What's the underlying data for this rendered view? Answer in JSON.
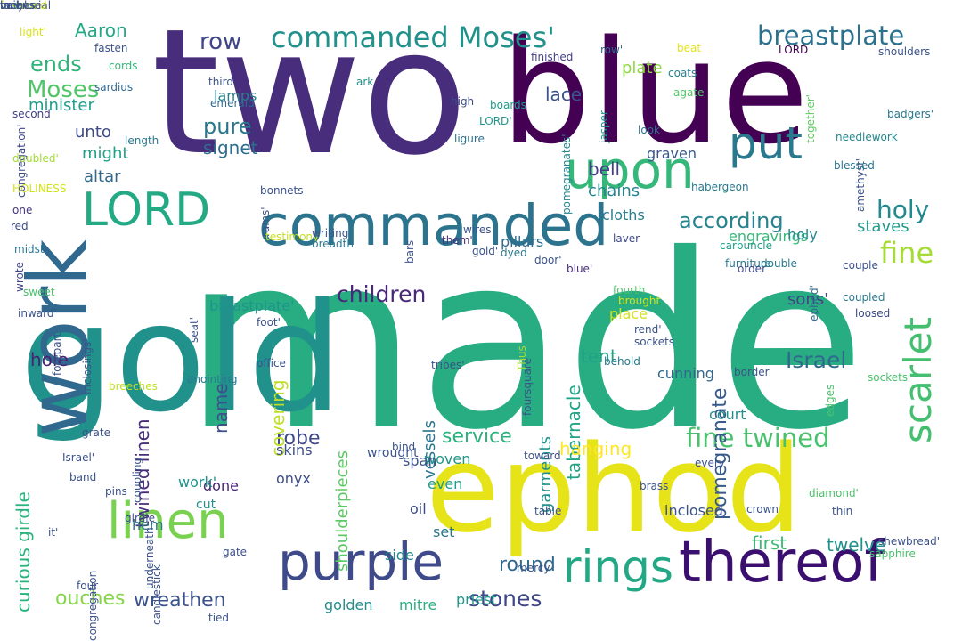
{
  "words": [
    {
      "text": "made",
      "color": "#27ad81",
      "rotate": 0
    },
    {
      "text": "two",
      "color": "#472d7b",
      "rotate": 0
    },
    {
      "text": "blue",
      "color": "#440154",
      "rotate": 0
    },
    {
      "text": "gold",
      "color": "#21918c",
      "rotate": 0
    },
    {
      "text": "ephod",
      "color": "#e6e419",
      "rotate": 0
    },
    {
      "text": "work",
      "color": "#31688e",
      "rotate": -90
    },
    {
      "text": "commanded",
      "color": "#2c738e",
      "rotate": 0
    },
    {
      "text": "LORD",
      "color": "#23a983",
      "rotate": 0
    },
    {
      "text": "upon",
      "color": "#35b779",
      "rotate": 0
    },
    {
      "text": "put",
      "color": "#2a788e",
      "rotate": 0
    },
    {
      "text": "thereof",
      "color": "#3b0f70",
      "rotate": 0
    },
    {
      "text": "purple",
      "color": "#3e4a89",
      "rotate": 0
    },
    {
      "text": "linen",
      "color": "#7ad151",
      "rotate": 0
    },
    {
      "text": "rings",
      "color": "#22a884",
      "rotate": 0
    },
    {
      "text": "scarlet",
      "color": "#44bf70",
      "rotate": -90
    },
    {
      "text": "commanded Moses'",
      "color": "#21918c",
      "rotate": 0
    },
    {
      "text": "breastplate",
      "color": "#2c728e",
      "rotate": 0
    },
    {
      "text": "children",
      "color": "#482878",
      "rotate": 0
    },
    {
      "text": "Israel",
      "color": "#31688e",
      "rotate": 0
    },
    {
      "text": "fine twined",
      "color": "#4ac16d",
      "rotate": 0
    },
    {
      "text": "according",
      "color": "#26828e",
      "rotate": 0
    },
    {
      "text": "pomegranate",
      "color": "#375a8c",
      "rotate": -90
    },
    {
      "text": "tabernacle",
      "color": "#20a386",
      "rotate": -90
    },
    {
      "text": "twined linen",
      "color": "#472d7b",
      "rotate": -90
    },
    {
      "text": "stones",
      "color": "#3f4788",
      "rotate": 0
    },
    {
      "text": "robe",
      "color": "#3e4989",
      "rotate": 0
    },
    {
      "text": "service",
      "color": "#2db27d",
      "rotate": 0
    },
    {
      "text": "curious girdle",
      "color": "#2db27d",
      "rotate": -90
    },
    {
      "text": "Moses",
      "color": "#52c569",
      "rotate": 0
    },
    {
      "text": "ouches",
      "color": "#86d549",
      "rotate": 0
    },
    {
      "text": "wreathen",
      "color": "#3b528b",
      "rotate": 0
    },
    {
      "text": "round",
      "color": "#31688e",
      "rotate": 0
    },
    {
      "text": "fine",
      "color": "#a5db36",
      "rotate": 0
    },
    {
      "text": "holy",
      "color": "#23898e",
      "rotate": 0
    },
    {
      "text": "row",
      "color": "#3f4788",
      "rotate": 0
    },
    {
      "text": "Aaron",
      "color": "#22a884",
      "rotate": 0
    },
    {
      "text": "ends",
      "color": "#31b57b",
      "rotate": 0
    },
    {
      "text": "pure",
      "color": "#2a788e",
      "rotate": 0
    },
    {
      "text": "signet",
      "color": "#2e6e8e",
      "rotate": 0
    },
    {
      "text": "hole",
      "color": "#482173",
      "rotate": 0
    },
    {
      "text": "name",
      "color": "#3d4e8a",
      "rotate": -90
    },
    {
      "text": "covering",
      "color": "#bddf26",
      "rotate": -90
    },
    {
      "text": "hanging",
      "color": "#fde725",
      "rotate": 0
    },
    {
      "text": "bell",
      "color": "#433e85",
      "rotate": 0
    },
    {
      "text": "chains",
      "color": "#25848e",
      "rotate": 0
    },
    {
      "text": "tent",
      "color": "#1fa287",
      "rotate": 0
    },
    {
      "text": "sons'",
      "color": "#404387",
      "rotate": 0
    },
    {
      "text": "vessels",
      "color": "#2b758e",
      "rotate": -90
    },
    {
      "text": "shoulderpieces",
      "color": "#5cc863",
      "rotate": -90
    },
    {
      "text": "minister",
      "color": "#1f9e89",
      "rotate": 0
    },
    {
      "text": "unto",
      "color": "#3e4a89",
      "rotate": 0
    },
    {
      "text": "might",
      "color": "#1fa088",
      "rotate": 0
    },
    {
      "text": "altar",
      "color": "#31688e",
      "rotate": 0
    },
    {
      "text": "lamps",
      "color": "#277f8e",
      "rotate": 0
    },
    {
      "text": "garments",
      "color": "#21918c",
      "rotate": -90
    },
    {
      "text": "woven",
      "color": "#1f978b",
      "rotate": 0
    },
    {
      "text": "lace",
      "color": "#3b528b",
      "rotate": 0
    },
    {
      "text": "plate",
      "color": "#8fd744",
      "rotate": 0
    },
    {
      "text": "pillars",
      "color": "#2f6c8e",
      "rotate": 0
    },
    {
      "text": "cloths",
      "color": "#287d8e",
      "rotate": 0
    },
    {
      "text": "place",
      "color": "#d2e21b",
      "rotate": 0
    },
    {
      "text": "court",
      "color": "#21908d",
      "rotate": 0
    },
    {
      "text": "cunning",
      "color": "#31688e",
      "rotate": 0
    },
    {
      "text": "inclosed",
      "color": "#3b528b",
      "rotate": 0
    },
    {
      "text": "first",
      "color": "#3aba76",
      "rotate": 0
    },
    {
      "text": "twelve",
      "color": "#21918c",
      "rotate": 0
    },
    {
      "text": "staves",
      "color": "#1f9a8a",
      "rotate": 0
    },
    {
      "text": "engravings",
      "color": "#35b779",
      "rotate": 0
    },
    {
      "text": "graven",
      "color": "#38598c",
      "rotate": 0
    },
    {
      "text": "onyx",
      "color": "#3d4e8a",
      "rotate": 0
    },
    {
      "text": "skins",
      "color": "#3d4e8a",
      "rotate": 0
    },
    {
      "text": "span",
      "color": "#3b528b",
      "rotate": 0
    },
    {
      "text": "oil",
      "color": "#3e4a89",
      "rotate": 0
    },
    {
      "text": "side",
      "color": "#24878e",
      "rotate": 0
    },
    {
      "text": "even",
      "color": "#1f9e89",
      "rotate": 0
    },
    {
      "text": "set",
      "color": "#2a788e",
      "rotate": 0
    },
    {
      "text": "hem",
      "color": "#2a788e",
      "rotate": 0
    },
    {
      "text": "done",
      "color": "#482475",
      "rotate": 0
    },
    {
      "text": "golden",
      "color": "#228b8d",
      "rotate": 0
    },
    {
      "text": "mitre",
      "color": "#29af7f",
      "rotate": 0
    },
    {
      "text": "priest",
      "color": "#1f9a8a",
      "rotate": 0
    },
    {
      "text": "breastplate'",
      "color": "#1f948c",
      "rotate": 0
    },
    {
      "text": "work'",
      "color": "#21918c",
      "rotate": 0
    },
    {
      "text": "wrought",
      "color": "#3b528b",
      "rotate": 0
    },
    {
      "text": "cut",
      "color": "#21918c",
      "rotate": 0
    },
    {
      "text": "holy",
      "color": "#23898e",
      "rotate": 0
    },
    {
      "text": "HOLINESS",
      "color": "#d2e21b",
      "rotate": 0
    },
    {
      "text": "light'",
      "color": "#d8e219",
      "rotate": 0
    },
    {
      "text": "fasten",
      "color": "#3b528b",
      "rotate": 0
    },
    {
      "text": "cords",
      "color": "#35b779",
      "rotate": 0
    },
    {
      "text": "sardius",
      "color": "#31688e",
      "rotate": 0
    },
    {
      "text": "row'",
      "color": "#31688e",
      "rotate": 0
    },
    {
      "text": "finished",
      "color": "#433e85",
      "rotate": 0
    },
    {
      "text": "beat",
      "color": "#e5e419",
      "rotate": 0
    },
    {
      "text": "LORD",
      "color": "#440154",
      "rotate": 0
    },
    {
      "text": "shoulders",
      "color": "#3b528b",
      "rotate": 0
    },
    {
      "text": "coats",
      "color": "#277f8e",
      "rotate": 0
    },
    {
      "text": "agate",
      "color": "#52c569",
      "rotate": 0
    },
    {
      "text": "together'",
      "color": "#5ec962",
      "rotate": -90
    },
    {
      "text": "amethyst'",
      "color": "#3b528b",
      "rotate": -90
    },
    {
      "text": "badgers'",
      "color": "#2a788e",
      "rotate": 0
    },
    {
      "text": "congregation'",
      "color": "#3e4989",
      "rotate": -90
    },
    {
      "text": "second",
      "color": "#424086",
      "rotate": 0
    },
    {
      "text": "third",
      "color": "#3b528b",
      "rotate": 0
    },
    {
      "text": "emerald",
      "color": "#31688e",
      "rotate": 0
    },
    {
      "text": "ark",
      "color": "#21918c",
      "rotate": 0
    },
    {
      "text": "high",
      "color": "#3d4e8a",
      "rotate": 0
    },
    {
      "text": "LORD'",
      "color": "#1f968b",
      "rotate": 0
    },
    {
      "text": "ligure",
      "color": "#2c728e",
      "rotate": 0
    },
    {
      "text": "length",
      "color": "#2a788e",
      "rotate": 0
    },
    {
      "text": "doubled'",
      "color": "#a2da37",
      "rotate": 0
    },
    {
      "text": "one",
      "color": "#453781",
      "rotate": 0
    },
    {
      "text": "red",
      "color": "#3e4989",
      "rotate": 0
    },
    {
      "text": "midst",
      "color": "#2a788e",
      "rotate": 0
    },
    {
      "text": "wrote",
      "color": "#404588",
      "rotate": -90
    },
    {
      "text": "jasper",
      "color": "#1f948c",
      "rotate": -90
    },
    {
      "text": "pomegranates'",
      "color": "#24868e",
      "rotate": -90
    },
    {
      "text": "boards",
      "color": "#1f9a8a",
      "rotate": 0
    },
    {
      "text": "look",
      "color": "#2d708e",
      "rotate": 0
    },
    {
      "text": "needlework",
      "color": "#24878e",
      "rotate": 0
    },
    {
      "text": "habergeon",
      "color": "#2a788e",
      "rotate": 0
    },
    {
      "text": "blessed",
      "color": "#29798e",
      "rotate": 0
    },
    {
      "text": "bonnets",
      "color": "#3b528b",
      "rotate": 0
    },
    {
      "text": "rams'",
      "color": "#3b528b",
      "rotate": -90
    },
    {
      "text": "testimony",
      "color": "#c8e020",
      "rotate": 0
    },
    {
      "text": "writing",
      "color": "#3b528b",
      "rotate": 0
    },
    {
      "text": "breadth",
      "color": "#2a788e",
      "rotate": 0
    },
    {
      "text": "wires",
      "color": "#3b528b",
      "rotate": 0
    },
    {
      "text": "gold'",
      "color": "#3b528b",
      "rotate": 0
    },
    {
      "text": "dyed",
      "color": "#2a788e",
      "rotate": 0
    },
    {
      "text": "door'",
      "color": "#3b528b",
      "rotate": 0
    },
    {
      "text": "blue'",
      "color": "#472d7b",
      "rotate": 0
    },
    {
      "text": "bars",
      "color": "#3b528b",
      "rotate": -90
    },
    {
      "text": "them'",
      "color": "#472d7b",
      "rotate": 0
    },
    {
      "text": "laver",
      "color": "#3e4a89",
      "rotate": 0
    },
    {
      "text": "carbuncle",
      "color": "#1f9e89",
      "rotate": 0
    },
    {
      "text": "furniture",
      "color": "#2a788e",
      "rotate": 0
    },
    {
      "text": "order",
      "color": "#3e4989",
      "rotate": 0
    },
    {
      "text": "double",
      "color": "#2a788e",
      "rotate": 0
    },
    {
      "text": "ephod'",
      "color": "#31688e",
      "rotate": -90
    },
    {
      "text": "loosed",
      "color": "#3e4a89",
      "rotate": 0
    },
    {
      "text": "coupled",
      "color": "#2a788e",
      "rotate": 0
    },
    {
      "text": "couple",
      "color": "#3b528b",
      "rotate": 0
    },
    {
      "text": "fourth",
      "color": "#4ac16d",
      "rotate": 0
    },
    {
      "text": "brought",
      "color": "#d2e21b",
      "rotate": 0
    },
    {
      "text": "sockets",
      "color": "#3b528b",
      "rotate": 0
    },
    {
      "text": "rend'",
      "color": "#3b528b",
      "rotate": 0
    },
    {
      "text": "sweet",
      "color": "#4ac16d",
      "rotate": 0
    },
    {
      "text": "inward'",
      "color": "#3b528b",
      "rotate": 0
    },
    {
      "text": "forepart",
      "color": "#3b528b",
      "rotate": -90
    },
    {
      "text": "inclosings'",
      "color": "#3b528b",
      "rotate": -90
    },
    {
      "text": "seat'",
      "color": "#3b528b",
      "rotate": -90
    },
    {
      "text": "foot'",
      "color": "#3b528b",
      "rotate": 0
    },
    {
      "text": "office",
      "color": "#3b528b",
      "rotate": 0
    },
    {
      "text": "anointing",
      "color": "#2a788e",
      "rotate": 0
    },
    {
      "text": "foursquare",
      "color": "#3b528b",
      "rotate": -90
    },
    {
      "text": "tribes'",
      "color": "#3b528b",
      "rotate": 0
    },
    {
      "text": "Thus",
      "color": "#a5db36",
      "rotate": -90
    },
    {
      "text": "behold",
      "color": "#2a788e",
      "rotate": 0
    },
    {
      "text": "toward",
      "color": "#3b528b",
      "rotate": 0
    },
    {
      "text": "border",
      "color": "#3b528b",
      "rotate": 0
    },
    {
      "text": "edges",
      "color": "#4ac16d",
      "rotate": -90
    },
    {
      "text": "sockets'",
      "color": "#4ac16d",
      "rotate": 0
    },
    {
      "text": "breeches",
      "color": "#bddf26",
      "rotate": 0
    },
    {
      "text": "grate",
      "color": "#3b528b",
      "rotate": 0
    },
    {
      "text": "Israel'",
      "color": "#3b528b",
      "rotate": 0
    },
    {
      "text": "band",
      "color": "#3b528b",
      "rotate": 0
    },
    {
      "text": "pins",
      "color": "#3b528b",
      "rotate": 0
    },
    {
      "text": "girdle",
      "color": "#3b528b",
      "rotate": 0
    },
    {
      "text": "coupling",
      "color": "#3b528b",
      "rotate": -90
    },
    {
      "text": "underneath",
      "color": "#3b528b",
      "rotate": -90
    },
    {
      "text": "it'",
      "color": "#3b528b",
      "rotate": 0
    },
    {
      "text": "four",
      "color": "#3b528b",
      "rotate": 0
    },
    {
      "text": "congregation",
      "color": "#3b528b",
      "rotate": -90
    },
    {
      "text": "candlestick",
      "color": "#3b528b",
      "rotate": -90
    },
    {
      "text": "gate",
      "color": "#3b528b",
      "rotate": 0
    },
    {
      "text": "bind",
      "color": "#3b528b",
      "rotate": 0
    },
    {
      "text": "mercy",
      "color": "#3b528b",
      "rotate": 0
    },
    {
      "text": "table",
      "color": "#3b528b",
      "rotate": 0
    },
    {
      "text": "brass",
      "color": "#3b528b",
      "rotate": 0
    },
    {
      "text": "every",
      "color": "#3b528b",
      "rotate": 0
    },
    {
      "text": "crown",
      "color": "#3b528b",
      "rotate": 0
    },
    {
      "text": "diamond'",
      "color": "#4ac16d",
      "rotate": 0
    },
    {
      "text": "thin",
      "color": "#3b528b",
      "rotate": 0
    },
    {
      "text": "sapphire",
      "color": "#4ac16d",
      "rotate": 0
    },
    {
      "text": "shewbread'",
      "color": "#3b528b",
      "rotate": 0
    },
    {
      "text": "tied",
      "color": "#3b528b",
      "rotate": 0
    },
    {
      "text": "brasen",
      "color": "#4ac16d",
      "rotate": 0
    },
    {
      "text": "beryl",
      "color": "#3b528b",
      "rotate": 0
    },
    {
      "text": "memorial",
      "color": "#3b528b",
      "rotate": 0
    },
    {
      "text": "fastened",
      "color": "#d2e21b",
      "rotate": 0
    },
    {
      "text": "taches",
      "color": "#3b528b",
      "rotate": 0
    },
    {
      "text": "vail",
      "color": "#3b528b",
      "rotate": 0
    },
    {
      "text": "incense",
      "color": "#3b528b",
      "rotate": 0
    }
  ]
}
